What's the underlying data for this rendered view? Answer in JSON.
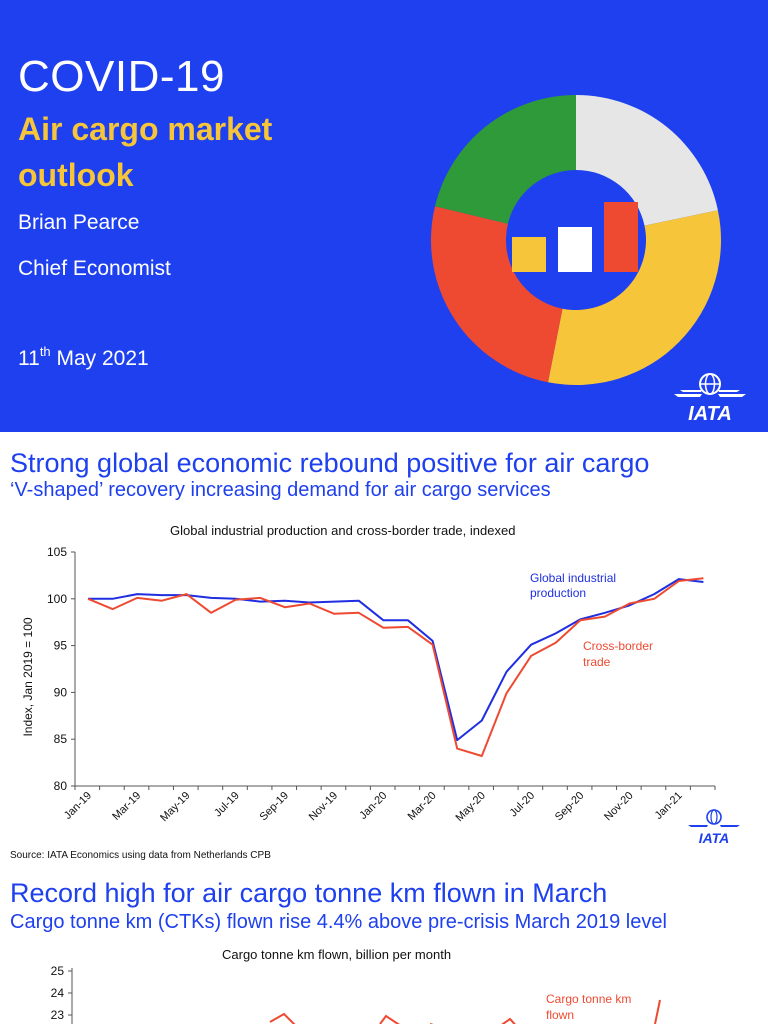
{
  "cover": {
    "title": "COVID-19",
    "subtitle": "Air cargo market outlook",
    "author": "Brian Pearce",
    "role": "Chief Economist",
    "date_day": "11",
    "date_suffix": "th",
    "date_rest": " May 2021",
    "logo_text": "IATA",
    "colors": {
      "background": "#1e40ee",
      "green": "#2f9a3a",
      "grey": "#e6e6e6",
      "yellow": "#f7c539",
      "red": "#ee4a32",
      "white": "#ffffff"
    }
  },
  "slide2": {
    "title": "Strong global economic rebound positive for air cargo",
    "subtitle": "‘V-shaped’ recovery increasing demand for air cargo services",
    "source": "Source: IATA Economics using data from Netherlands CPB",
    "logo_text": "IATA",
    "chart_data": {
      "type": "line",
      "title": "Global industrial production and cross-border trade, indexed",
      "ylabel": "Index, Jan 2019 = 100",
      "ylim": [
        80,
        105
      ],
      "yticks": [
        "80",
        "85",
        "90",
        "95",
        "100",
        "105"
      ],
      "x": [
        "Jan-19",
        "Feb-19",
        "Mar-19",
        "Apr-19",
        "May-19",
        "Jun-19",
        "Jul-19",
        "Aug-19",
        "Sep-19",
        "Oct-19",
        "Nov-19",
        "Dec-19",
        "Jan-20",
        "Feb-20",
        "Mar-20",
        "Apr-20",
        "May-20",
        "Jun-20",
        "Jul-20",
        "Aug-20",
        "Sep-20",
        "Oct-20",
        "Nov-20",
        "Dec-20",
        "Jan-21",
        "Feb-21"
      ],
      "xticks": [
        "Jan-19",
        "Mar-19",
        "May-19",
        "Jul-19",
        "Sep-19",
        "Nov-19",
        "Jan-20",
        "Mar-20",
        "May-20",
        "Jul-20",
        "Sep-20",
        "Nov-20",
        "Jan-21"
      ],
      "series": [
        {
          "name": "Global industrial production",
          "color": "#1e2ee0",
          "values": [
            100,
            100,
            100.5,
            100.4,
            100.4,
            100.1,
            100,
            99.7,
            99.8,
            99.6,
            99.7,
            99.8,
            97.7,
            97.7,
            95.5,
            84.9,
            87,
            92.2,
            95.1,
            96.3,
            97.8,
            98.5,
            99.3,
            100.5,
            102.1,
            101.8
          ]
        },
        {
          "name": "Cross-border trade",
          "color": "#ee4a32",
          "values": [
            100,
            98.9,
            100.1,
            99.8,
            100.5,
            98.5,
            99.9,
            100.1,
            99.1,
            99.5,
            98.4,
            98.5,
            96.9,
            97,
            95.1,
            84,
            83.2,
            89.9,
            93.9,
            95.3,
            97.7,
            98.1,
            99.5,
            100,
            101.9,
            102.2
          ]
        }
      ],
      "annotations": [
        {
          "text": "Global industrial production",
          "color": "#1e2ee0"
        },
        {
          "text": "Cross-border trade",
          "color": "#ee4a32"
        }
      ]
    }
  },
  "slide3": {
    "title": "Record high for air cargo tonne km flown in March",
    "subtitle": "Cargo tonne km (CTKs) flown rise 4.4% above pre-crisis March 2019 level",
    "chart_data": {
      "type": "line",
      "title": "Cargo tonne km flown, billion per month",
      "yticks": [
        "23",
        "24",
        "25"
      ],
      "series": [
        {
          "name": "Cargo tonne km flown",
          "color": "#ee4a32"
        }
      ]
    }
  }
}
